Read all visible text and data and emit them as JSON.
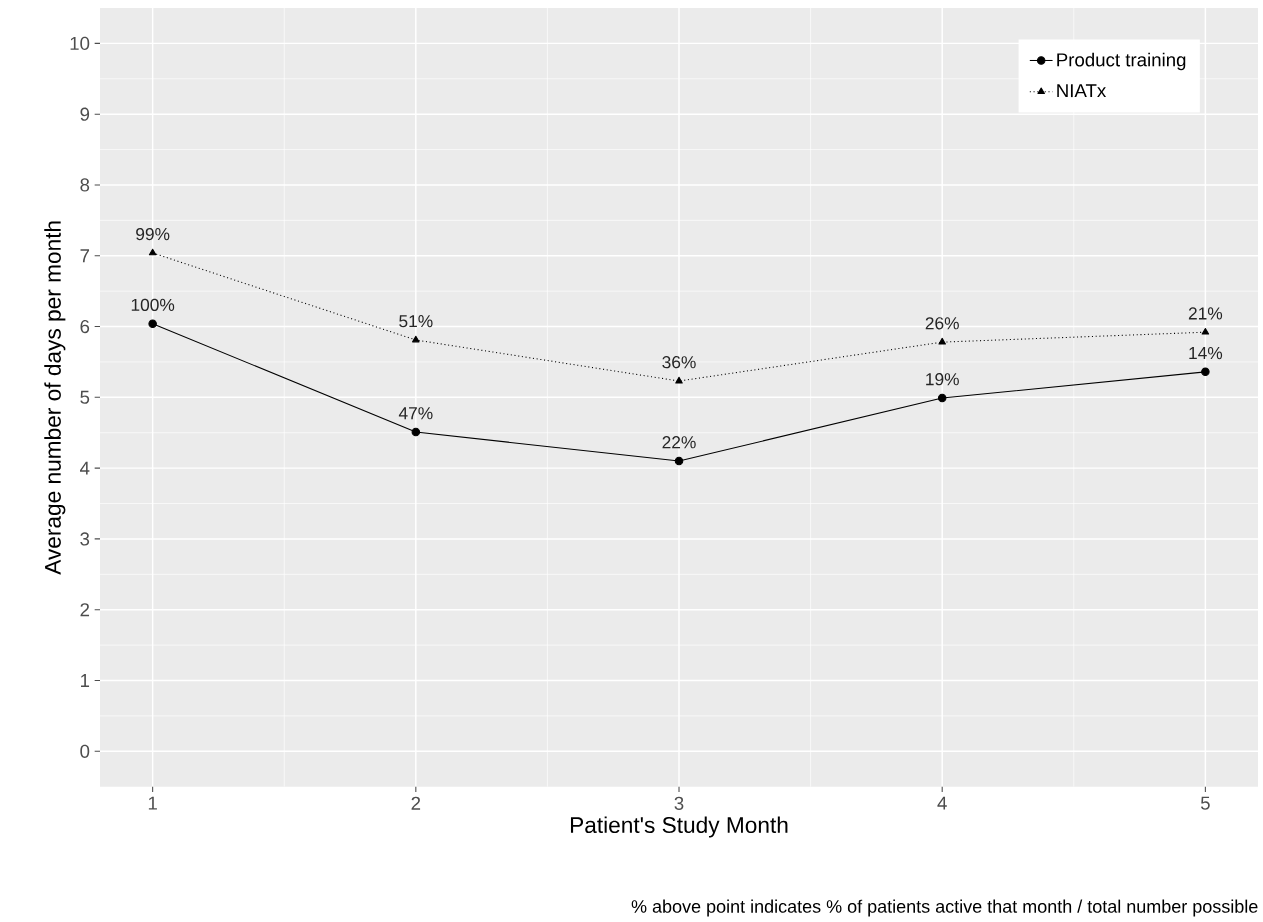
{
  "chart_data": {
    "type": "line",
    "xlabel": "Patient's Study Month",
    "ylabel": "Average number of days per month",
    "x": [
      1,
      2,
      3,
      4,
      5
    ],
    "series": [
      {
        "name": "Product training",
        "color": "#000000",
        "marker": "circle",
        "line_style": "solid",
        "values": [
          6.04,
          4.51,
          4.1,
          4.99,
          5.36
        ]
      },
      {
        "name": "NIATx",
        "color": "#000000",
        "marker": "triangle",
        "line_style": "dotted",
        "values": [
          7.04,
          5.81,
          5.23,
          5.78,
          5.92
        ]
      }
    ],
    "xlim": [
      0.8,
      5.2
    ],
    "ylim": [
      -0.5,
      10.5
    ],
    "xticks": [
      1,
      2,
      3,
      4,
      5
    ],
    "yticks": [
      0,
      1,
      2,
      3,
      4,
      5,
      6,
      7,
      8,
      9,
      10
    ],
    "grid": true,
    "legend": "top right",
    "annotations": [
      {
        "text": "100%",
        "x": 1,
        "y": 6.04
      },
      {
        "text": "47%",
        "x": 2,
        "y": 4.51
      },
      {
        "text": "22%",
        "x": 3,
        "y": 4.1
      },
      {
        "text": "19%",
        "x": 4,
        "y": 4.99
      },
      {
        "text": "14%",
        "x": 5,
        "y": 5.36
      },
      {
        "text": "99%",
        "x": 1,
        "y": 7.04
      },
      {
        "text": "51%",
        "x": 2,
        "y": 5.81
      },
      {
        "text": "36%",
        "x": 3,
        "y": 5.23
      },
      {
        "text": "26%",
        "x": 4,
        "y": 5.78
      },
      {
        "text": "21%",
        "x": 5,
        "y": 5.92
      },
      "% above point indicates % of patients active that month / total number possible"
    ]
  }
}
